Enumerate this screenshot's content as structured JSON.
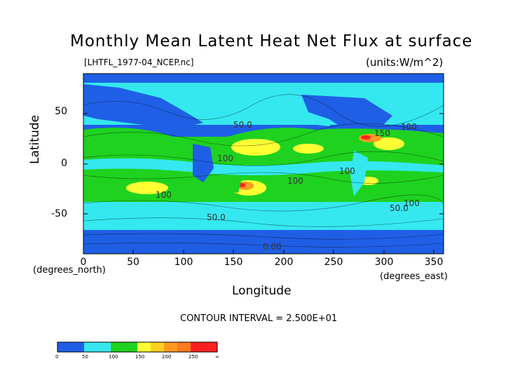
{
  "chart_data": {
    "type": "heatmap",
    "title": "Monthly Mean Latent Heat Net Flux at surface",
    "subtitle_left": "[LHTFL_1977-04_NCEP.nc]",
    "subtitle_right": "(units:W/m^2)",
    "xlabel": "Longitude",
    "ylabel": "Latitude",
    "x_units": "(degrees_east)",
    "y_units": "(degrees_north)",
    "xlim": [
      0,
      360
    ],
    "ylim": [
      -90,
      90
    ],
    "x_ticks": [
      0,
      50,
      100,
      150,
      200,
      250,
      300,
      350
    ],
    "y_ticks": [
      50,
      0,
      -50
    ],
    "contour_interval_text": "CONTOUR INTERVAL = 2.500E+01",
    "contour_labels": [
      "50.0",
      "150",
      "100",
      "100",
      "100",
      "100",
      "100",
      "100",
      "50.0",
      "50.0",
      "0.00"
    ],
    "colorbar": {
      "colors": [
        "#1f5fe6",
        "#1f5fe6",
        "#35e8f0",
        "#35e8f0",
        "#1fd21f",
        "#1fd21f",
        "#ffff33",
        "#ffcf1f",
        "#ff9a1f",
        "#ff7a1f",
        "#ff2020",
        "#ff2020"
      ],
      "labels": [
        "0",
        "50",
        "100",
        "150",
        "200",
        "250",
        "∞"
      ]
    }
  }
}
